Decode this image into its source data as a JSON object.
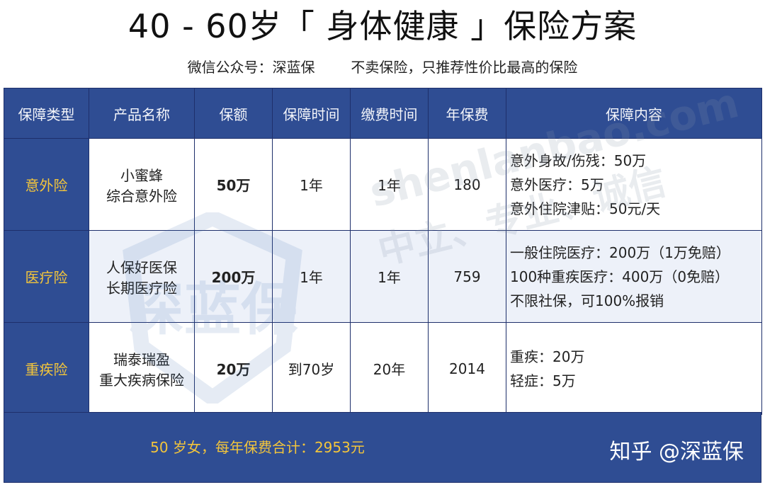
{
  "title": "40 - 60岁「 身体健康 」保险方案",
  "subtitle": "微信公众号：深蓝保        不卖保险，只推荐性价比最高的保险",
  "watermark": {
    "url": "shenlanbao.com",
    "tagline": "中立、专业、诚信",
    "logo_text": "深蓝保"
  },
  "table": {
    "headers": [
      "保障类型",
      "产品名称",
      "保额",
      "保障时间",
      "缴费时间",
      "年保费",
      "保障内容"
    ],
    "rows": [
      {
        "type": "意外险",
        "product": [
          "小蜜蜂",
          "综合意外险"
        ],
        "amount": "50万",
        "term": "1年",
        "pay_term": "1年",
        "premium": "180",
        "coverage": [
          "意外身故/伤残：50万",
          "意外医疗：5万",
          "意外住院津贴：50元/天"
        ]
      },
      {
        "type": "医疗险",
        "product": [
          "人保好医保",
          "长期医疗险"
        ],
        "amount": "200万",
        "term": "1年",
        "pay_term": "1年",
        "premium": "759",
        "coverage": [
          "一般住院医疗：200万（1万免赔）",
          "100种重疾医疗：400万（0免赔）",
          "不限社保，可100%报销"
        ]
      },
      {
        "type": "重疾险",
        "product": [
          "瑞泰瑞盈",
          "重大疾病保险"
        ],
        "amount": "20万",
        "term": "到70岁",
        "pay_term": "20年",
        "premium": "2014",
        "coverage": [
          "重疾：20万",
          "轻症：5万"
        ]
      }
    ]
  },
  "footer": {
    "summary": "50 岁女，每年保费合计：2953元",
    "brand": "知乎 @深蓝保"
  },
  "colors": {
    "header_blue": "#2f4d93",
    "type_text_yellow": "#f3c53b",
    "border": "#1e2f6b"
  }
}
